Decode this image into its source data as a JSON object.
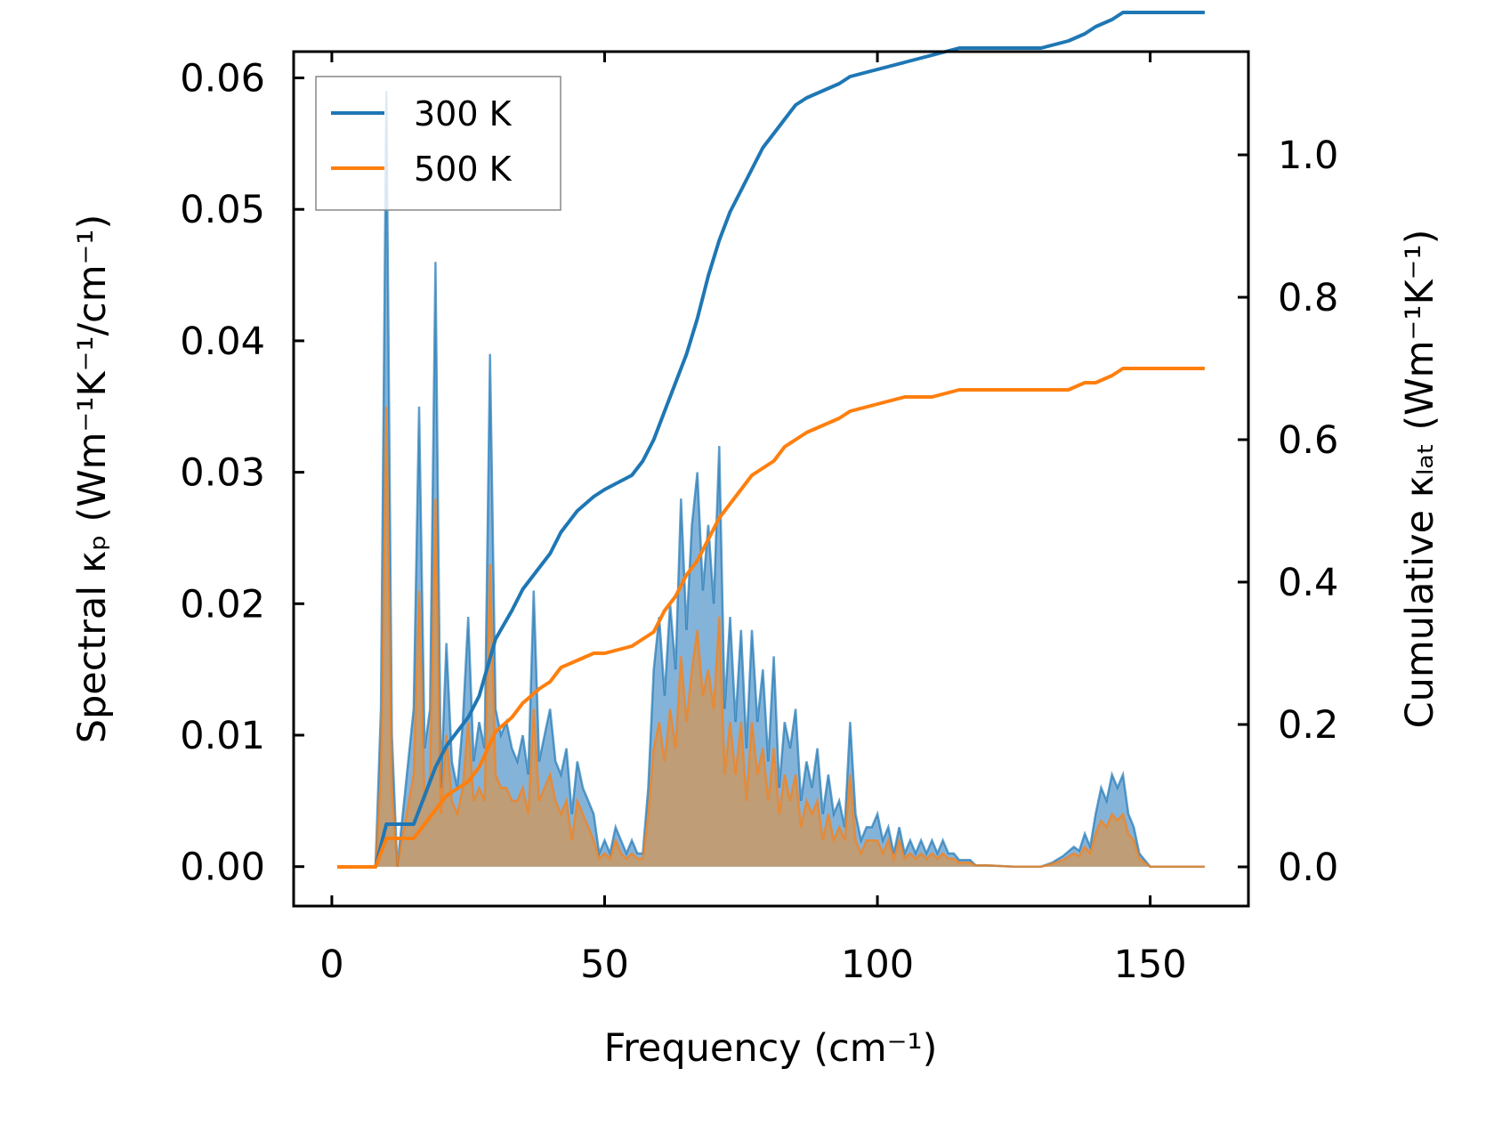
{
  "colors": {
    "series_300K": "#1f77b4",
    "series_500K": "#ff7f0e",
    "fill_300K": "#6fa6d3",
    "fill_500K": "#c49a6c",
    "axis": "#000000"
  },
  "chart_data": {
    "type": "line",
    "title": "",
    "xlabel": "Frequency (cm⁻¹)",
    "ylabel_left": "Spectral κₚ (Wm⁻¹K⁻¹/cm⁻¹)",
    "ylabel_right": "Cumulative κₗₐₜ (Wm⁻¹K⁻¹)",
    "xlim": [
      -7,
      168
    ],
    "ylim_left": [
      -0.003,
      0.062
    ],
    "ylim_right": [
      -0.055,
      1.145
    ],
    "x_ticks": [
      0,
      50,
      100,
      150
    ],
    "x_tick_labels": [
      "0",
      "50",
      "100",
      "150"
    ],
    "y_left_ticks": [
      0,
      0.01,
      0.02,
      0.03,
      0.04,
      0.05,
      0.06
    ],
    "y_left_tick_labels": [
      "0.00",
      "0.01",
      "0.02",
      "0.03",
      "0.04",
      "0.05",
      "0.06"
    ],
    "y_right_ticks": [
      0,
      0.2,
      0.4,
      0.6,
      0.8,
      1.0
    ],
    "y_right_tick_labels": [
      "0.0",
      "0.2",
      "0.4",
      "0.6",
      "0.8",
      "1.0"
    ],
    "legend": {
      "position": "top-left",
      "entries": [
        "300 K",
        "500 K"
      ]
    },
    "spectral_series": [
      {
        "name": "300 K",
        "axis": "left",
        "x": [
          1,
          8,
          9,
          10,
          11,
          12,
          15,
          16,
          17,
          18,
          19,
          20,
          21,
          22,
          23,
          24,
          25,
          26,
          27,
          28,
          29,
          30,
          31,
          32,
          33,
          34,
          35,
          36,
          37,
          38,
          39,
          40,
          41,
          42,
          43,
          44,
          45,
          46,
          47,
          48,
          49,
          50,
          51,
          52,
          53,
          54,
          55,
          56,
          57,
          58,
          59,
          60,
          61,
          62,
          63,
          64,
          65,
          66,
          67,
          68,
          69,
          70,
          71,
          72,
          73,
          74,
          75,
          76,
          77,
          78,
          79,
          80,
          81,
          82,
          83,
          84,
          85,
          86,
          87,
          88,
          89,
          90,
          91,
          92,
          93,
          94,
          95,
          96,
          97,
          98,
          99,
          100,
          101,
          102,
          103,
          104,
          105,
          106,
          107,
          108,
          109,
          110,
          111,
          112,
          113,
          114,
          115,
          116,
          117,
          118,
          120,
          125,
          130,
          132,
          134,
          136,
          137,
          138,
          139,
          140,
          141,
          142,
          143,
          144,
          145,
          146,
          147,
          148,
          150,
          160
        ],
        "values": [
          0,
          0,
          0.012,
          0.059,
          0.01,
          0,
          0.012,
          0.035,
          0.009,
          0.012,
          0.046,
          0.006,
          0.017,
          0.008,
          0.006,
          0.011,
          0.019,
          0.008,
          0.011,
          0.009,
          0.039,
          0.012,
          0.01,
          0.011,
          0.009,
          0.008,
          0.01,
          0.007,
          0.021,
          0.008,
          0.01,
          0.012,
          0.008,
          0.007,
          0.009,
          0.004,
          0.008,
          0.006,
          0.005,
          0.004,
          0.001,
          0.002,
          0.001,
          0.003,
          0.002,
          0.001,
          0.002,
          0.001,
          0.001,
          0.006,
          0.015,
          0.019,
          0.013,
          0.02,
          0.015,
          0.028,
          0.018,
          0.026,
          0.03,
          0.021,
          0.026,
          0.02,
          0.032,
          0.012,
          0.019,
          0.011,
          0.018,
          0.009,
          0.018,
          0.011,
          0.015,
          0.008,
          0.016,
          0.006,
          0.011,
          0.009,
          0.012,
          0.005,
          0.008,
          0.006,
          0.009,
          0.004,
          0.007,
          0.004,
          0.005,
          0.003,
          0.011,
          0.004,
          0.002,
          0.003,
          0.003,
          0.004,
          0.002,
          0.003,
          0.001,
          0.003,
          0.001,
          0.002,
          0.001,
          0.002,
          0.001,
          0.002,
          0.001,
          0.002,
          0.001,
          0.001,
          0.0005,
          0.0005,
          0.0005,
          0.0001,
          0.0001,
          0,
          0,
          0.0003,
          0.0008,
          0.0015,
          0.0012,
          0.0025,
          0.0015,
          0.004,
          0.006,
          0.005,
          0.007,
          0.006,
          0.007,
          0.004,
          0.003,
          0.001,
          0,
          0
        ]
      },
      {
        "name": "500 K",
        "axis": "left",
        "x": [
          1,
          8,
          9,
          10,
          11,
          12,
          15,
          16,
          17,
          18,
          19,
          20,
          21,
          22,
          23,
          24,
          25,
          26,
          27,
          28,
          29,
          30,
          31,
          32,
          33,
          34,
          35,
          36,
          37,
          38,
          39,
          40,
          41,
          42,
          43,
          44,
          45,
          46,
          47,
          48,
          49,
          50,
          51,
          52,
          53,
          54,
          55,
          56,
          57,
          58,
          59,
          60,
          61,
          62,
          63,
          64,
          65,
          66,
          67,
          68,
          69,
          70,
          71,
          72,
          73,
          74,
          75,
          76,
          77,
          78,
          79,
          80,
          81,
          82,
          83,
          84,
          85,
          86,
          87,
          88,
          89,
          90,
          91,
          92,
          93,
          94,
          95,
          96,
          97,
          98,
          99,
          100,
          101,
          102,
          103,
          104,
          105,
          106,
          107,
          108,
          109,
          110,
          111,
          112,
          113,
          114,
          115,
          116,
          117,
          118,
          120,
          125,
          130,
          132,
          134,
          136,
          137,
          138,
          139,
          140,
          141,
          142,
          143,
          144,
          145,
          146,
          147,
          148,
          150,
          160
        ],
        "values": [
          0,
          0,
          0.007,
          0.035,
          0.006,
          0,
          0.007,
          0.021,
          0.005,
          0.007,
          0.028,
          0.004,
          0.01,
          0.005,
          0.004,
          0.006,
          0.011,
          0.005,
          0.006,
          0.005,
          0.023,
          0.007,
          0.006,
          0.006,
          0.005,
          0.005,
          0.006,
          0.004,
          0.012,
          0.005,
          0.006,
          0.007,
          0.005,
          0.004,
          0.005,
          0.002,
          0.005,
          0.004,
          0.003,
          0.002,
          0.0006,
          0.001,
          0.0006,
          0.002,
          0.001,
          0.0006,
          0.001,
          0.0006,
          0.0006,
          0.004,
          0.009,
          0.011,
          0.008,
          0.012,
          0.009,
          0.016,
          0.011,
          0.015,
          0.018,
          0.013,
          0.015,
          0.012,
          0.019,
          0.007,
          0.011,
          0.007,
          0.011,
          0.005,
          0.011,
          0.007,
          0.009,
          0.005,
          0.009,
          0.004,
          0.007,
          0.005,
          0.007,
          0.003,
          0.005,
          0.004,
          0.005,
          0.002,
          0.004,
          0.002,
          0.003,
          0.002,
          0.007,
          0.002,
          0.001,
          0.002,
          0.002,
          0.002,
          0.001,
          0.002,
          0.0006,
          0.002,
          0.0006,
          0.001,
          0.0006,
          0.001,
          0.0006,
          0.001,
          0.0006,
          0.001,
          0.0006,
          0.0006,
          0.0003,
          0.0003,
          0.0003,
          0.0001,
          0.0001,
          0,
          0,
          0.0002,
          0.0005,
          0.001,
          0.0008,
          0.0015,
          0.001,
          0.0025,
          0.0035,
          0.003,
          0.004,
          0.0035,
          0.004,
          0.0025,
          0.002,
          0.0006,
          0,
          0
        ]
      }
    ],
    "cumulative_series": [
      {
        "name": "300 K",
        "axis": "right",
        "x": [
          1,
          8,
          9,
          10,
          15,
          17,
          19,
          21,
          23,
          25,
          27,
          30,
          33,
          35,
          38,
          40,
          42,
          45,
          48,
          50,
          55,
          57,
          59,
          61,
          63,
          65,
          67,
          69,
          71,
          73,
          75,
          77,
          79,
          81,
          83,
          85,
          87,
          90,
          93,
          95,
          100,
          105,
          110,
          115,
          120,
          130,
          135,
          138,
          140,
          143,
          145,
          150,
          160
        ],
        "values": [
          0,
          0,
          0.03,
          0.06,
          0.06,
          0.1,
          0.14,
          0.17,
          0.19,
          0.21,
          0.24,
          0.32,
          0.36,
          0.39,
          0.42,
          0.44,
          0.47,
          0.5,
          0.52,
          0.53,
          0.55,
          0.57,
          0.6,
          0.64,
          0.68,
          0.72,
          0.77,
          0.83,
          0.88,
          0.92,
          0.95,
          0.98,
          1.01,
          1.03,
          1.05,
          1.07,
          1.08,
          1.09,
          1.1,
          1.11,
          1.12,
          1.13,
          1.14,
          1.15,
          1.15,
          1.15,
          1.16,
          1.17,
          1.18,
          1.19,
          1.2,
          1.2,
          1.2
        ]
      },
      {
        "name": "500 K",
        "axis": "right",
        "x": [
          1,
          8,
          9,
          10,
          15,
          17,
          19,
          21,
          23,
          25,
          27,
          30,
          33,
          35,
          38,
          40,
          42,
          45,
          48,
          50,
          55,
          57,
          59,
          61,
          63,
          65,
          67,
          69,
          71,
          73,
          75,
          77,
          79,
          81,
          83,
          85,
          87,
          90,
          93,
          95,
          100,
          105,
          110,
          115,
          120,
          130,
          135,
          138,
          140,
          143,
          145,
          150,
          160
        ],
        "values": [
          0,
          0,
          0.02,
          0.04,
          0.04,
          0.06,
          0.08,
          0.1,
          0.11,
          0.12,
          0.14,
          0.19,
          0.21,
          0.23,
          0.25,
          0.26,
          0.28,
          0.29,
          0.3,
          0.3,
          0.31,
          0.32,
          0.33,
          0.36,
          0.38,
          0.41,
          0.43,
          0.46,
          0.49,
          0.51,
          0.53,
          0.55,
          0.56,
          0.57,
          0.59,
          0.6,
          0.61,
          0.62,
          0.63,
          0.64,
          0.65,
          0.66,
          0.66,
          0.67,
          0.67,
          0.67,
          0.67,
          0.68,
          0.68,
          0.69,
          0.7,
          0.7,
          0.7
        ]
      }
    ]
  }
}
